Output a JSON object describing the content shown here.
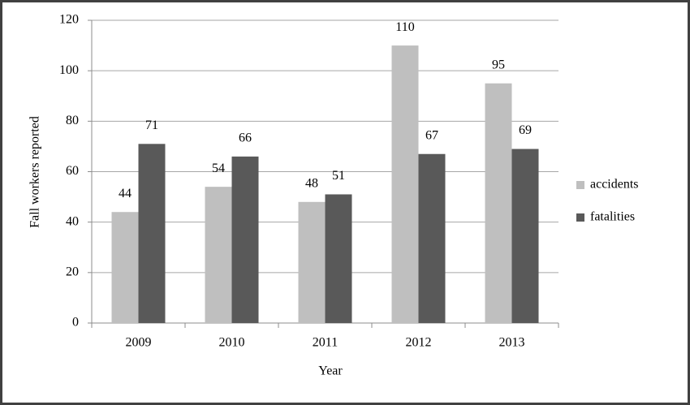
{
  "chart_data": {
    "type": "bar",
    "x_label": "Year",
    "y_label": "Fall workers reported",
    "categories": [
      "2009",
      "2010",
      "2011",
      "2012",
      "2013"
    ],
    "series": [
      {
        "name": "accidents",
        "color": "#bfbfbf",
        "values": [
          44,
          54,
          48,
          110,
          95
        ]
      },
      {
        "name": "fatalities",
        "color": "#595959",
        "values": [
          71,
          66,
          51,
          67,
          69
        ]
      }
    ],
    "ylim": [
      0,
      120
    ],
    "yticks": [
      0,
      20,
      40,
      60,
      80,
      100,
      120
    ],
    "grid": true,
    "legend": "right"
  }
}
